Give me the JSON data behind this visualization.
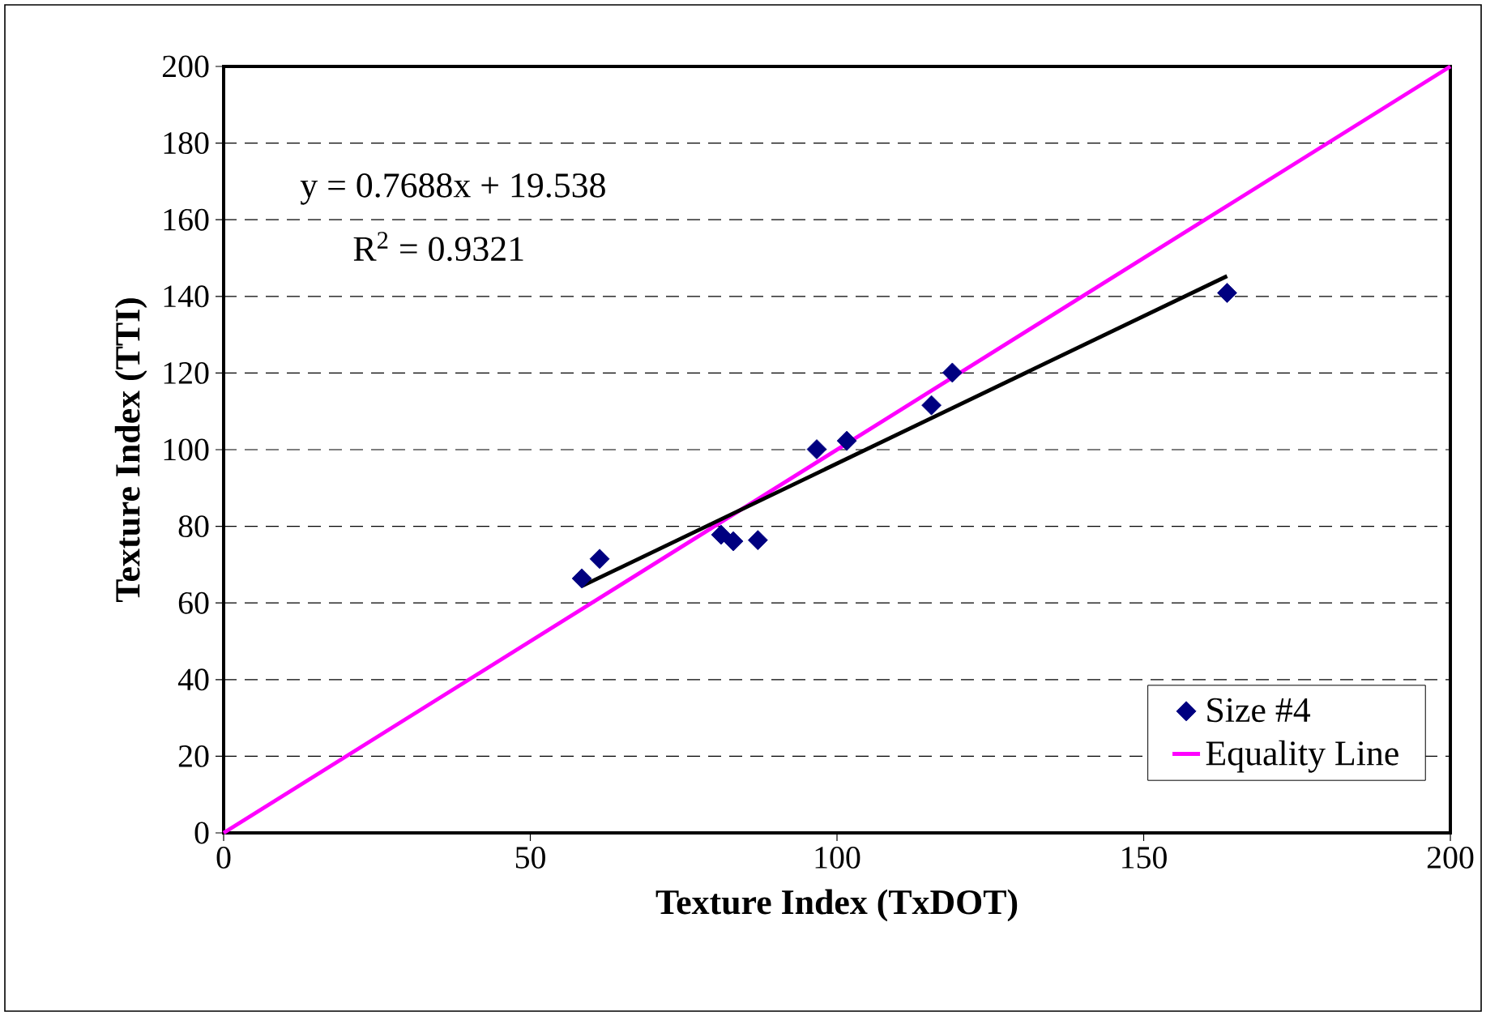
{
  "chart_data": {
    "type": "scatter",
    "xlabel": "Texture Index (TxDOT)",
    "ylabel": "Texture Index (TTI)",
    "annotations": [
      "y = 0.7688x + 19.538",
      "R$^{2}$ = 0.9321"
    ],
    "series": [
      {
        "name": "Size #4",
        "marker": "diamond",
        "color": "#000080",
        "x": [
          58.4,
          61.3,
          81.1,
          83.1,
          87.1,
          96.7,
          101.6,
          115.4,
          118.8,
          163.6
        ],
        "values": [
          66.4,
          71.5,
          77.8,
          76.1,
          76.4,
          100.1,
          102.3,
          111.6,
          120.1,
          140.9
        ]
      },
      {
        "name": "Equality Line",
        "type": "line",
        "color": "#ff00ff",
        "x": [
          0,
          200
        ],
        "values": [
          0,
          200
        ]
      },
      {
        "type": "line",
        "color": "#000000",
        "x": [
          58.4,
          163.6
        ],
        "values": [
          64.4,
          145.3
        ]
      }
    ],
    "xlim": [
      0,
      200
    ],
    "ylim": [
      0,
      200
    ],
    "xticks": [
      0,
      50,
      100,
      150,
      200
    ],
    "yticks": [
      0,
      20,
      40,
      60,
      80,
      100,
      120,
      140,
      160,
      180,
      200
    ],
    "grid": "y",
    "legend": "bottom right"
  }
}
